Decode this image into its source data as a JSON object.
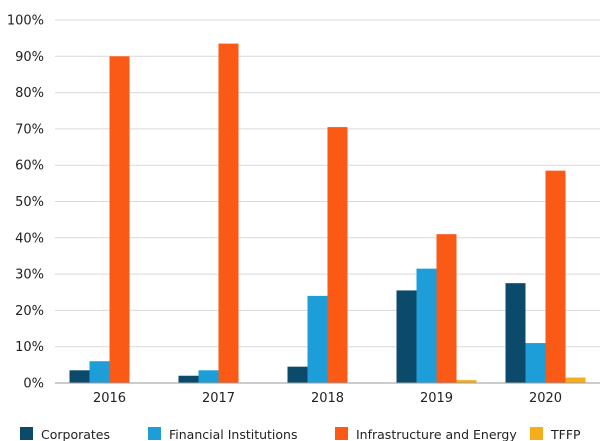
{
  "chart_data": {
    "type": "bar",
    "categories": [
      "2016",
      "2017",
      "2018",
      "2019",
      "2020"
    ],
    "series": [
      {
        "name": "Corporates",
        "color": "#0b4a6b",
        "values": [
          3.5,
          2,
          4.5,
          25.5,
          27.5
        ]
      },
      {
        "name": "Financial Institutions",
        "color": "#1e9ed9",
        "values": [
          6,
          3.5,
          24,
          31.5,
          11
        ]
      },
      {
        "name": "Infrastructure and Energy",
        "color": "#fb5a16",
        "values": [
          90,
          93.5,
          70.5,
          41,
          58.5
        ]
      },
      {
        "name": "TFFP",
        "color": "#f5ad1c",
        "values": [
          0,
          0,
          0,
          0.8,
          1.5
        ]
      }
    ],
    "ylim": [
      0,
      100
    ],
    "yticks": [
      "0%",
      "10%",
      "20%",
      "30%",
      "40%",
      "50%",
      "60%",
      "70%",
      "80%",
      "90%",
      "100%"
    ],
    "grid": true,
    "legend_position": "bottom"
  }
}
